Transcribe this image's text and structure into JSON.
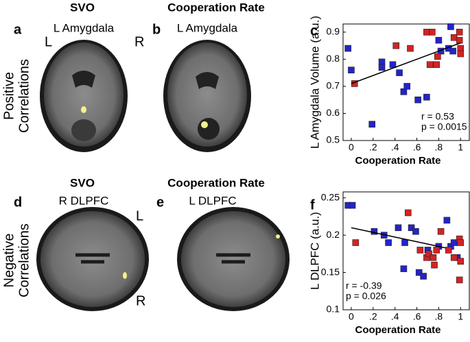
{
  "panels": [
    {
      "letter": "a",
      "header": "SVO",
      "region": "L Amygdala",
      "left": "L",
      "right": "R"
    },
    {
      "letter": "b",
      "header": "Cooperation Rate",
      "region": "L Amygdala"
    },
    {
      "letter": "c"
    },
    {
      "letter": "d",
      "header": "SVO",
      "region": "R DLPFC",
      "top": "L",
      "bottom": "R"
    },
    {
      "letter": "e",
      "header": "Cooperation Rate",
      "region": "L DLPFC"
    },
    {
      "letter": "f"
    }
  ],
  "row_labels": [
    [
      "Positive",
      "Correlations"
    ],
    [
      "Negative",
      "Correlations"
    ]
  ],
  "chart_data": [
    {
      "type": "scatter",
      "xlabel": "Cooperation Rate",
      "ylabel": "L Amygdala Volume (a.u.)",
      "xlim": [
        -0.075,
        1.08
      ],
      "ylim": [
        0.5,
        0.93
      ],
      "xticks": [
        0,
        {
          "value": 0.2,
          "label": ".2"
        },
        {
          "value": 0.4,
          "label": ".4"
        },
        {
          "value": 0.6,
          "label": ".6"
        },
        {
          "value": 0.8,
          "label": ".8"
        },
        1
      ],
      "yticks": [
        0.5,
        0.6,
        0.7,
        0.8,
        0.9
      ],
      "series": [
        {
          "color": "#2424c8",
          "x": [
            -0.03,
            0.0,
            0.19,
            0.28,
            0.28,
            0.38,
            0.44,
            0.48,
            0.51,
            0.61,
            0.69,
            0.8,
            0.82,
            0.89,
            0.91,
            0.93
          ],
          "values": [
            0.84,
            0.76,
            0.56,
            0.79,
            0.77,
            0.78,
            0.75,
            0.68,
            0.7,
            0.65,
            0.66,
            0.87,
            0.83,
            0.84,
            0.92,
            0.83
          ]
        },
        {
          "color": "#d02424",
          "x": [
            0.03,
            0.41,
            0.54,
            0.69,
            0.74,
            0.72,
            0.78,
            0.79,
            0.94,
            0.99,
            0.99,
            1.0,
            1.0
          ],
          "values": [
            0.71,
            0.85,
            0.84,
            0.9,
            0.9,
            0.78,
            0.78,
            0.81,
            0.88,
            0.9,
            0.87,
            0.84,
            0.82
          ]
        }
      ],
      "fit": {
        "x": [
          0,
          1
        ],
        "values": [
          0.71,
          0.86
        ]
      },
      "annotations": [
        "r = 0.53",
        "p = 0.0015"
      ]
    },
    {
      "type": "scatter",
      "xlabel": "Cooperation Rate",
      "ylabel": "L DLPFC (a.u.)",
      "xlim": [
        -0.075,
        1.08
      ],
      "ylim": [
        0.1,
        0.258
      ],
      "xticks": [
        0,
        {
          "value": 0.2,
          "label": ".2"
        },
        {
          "value": 0.4,
          "label": ".4"
        },
        {
          "value": 0.6,
          "label": ".6"
        },
        {
          "value": 0.8,
          "label": ".8"
        },
        1
      ],
      "yticks": [
        0.1,
        0.15,
        0.2,
        0.25
      ],
      "series": [
        {
          "color": "#2424c8",
          "x": [
            -0.03,
            0.01,
            0.21,
            0.3,
            0.34,
            0.43,
            0.48,
            0.49,
            0.55,
            0.59,
            0.62,
            0.66,
            0.7,
            0.8,
            0.875,
            0.91,
            0.94,
            0.97
          ],
          "values": [
            0.24,
            0.24,
            0.205,
            0.2,
            0.19,
            0.21,
            0.155,
            0.19,
            0.21,
            0.205,
            0.15,
            0.145,
            0.18,
            0.185,
            0.22,
            0.185,
            0.19,
            0.17
          ]
        },
        {
          "color": "#d02424",
          "x": [
            0.04,
            0.52,
            0.63,
            0.69,
            0.71,
            0.75,
            0.76,
            0.78,
            0.82,
            0.89,
            0.94,
            0.99,
            1.0,
            1.0,
            0.99
          ],
          "values": [
            0.19,
            0.23,
            0.18,
            0.17,
            0.175,
            0.17,
            0.16,
            0.18,
            0.205,
            0.18,
            0.17,
            0.195,
            0.19,
            0.165,
            0.14
          ]
        }
      ],
      "fit": {
        "x": [
          0,
          0.86
        ],
        "values": [
          0.21,
          0.183
        ]
      },
      "annotations": [
        "r = -0.39",
        "p = 0.026"
      ]
    }
  ]
}
